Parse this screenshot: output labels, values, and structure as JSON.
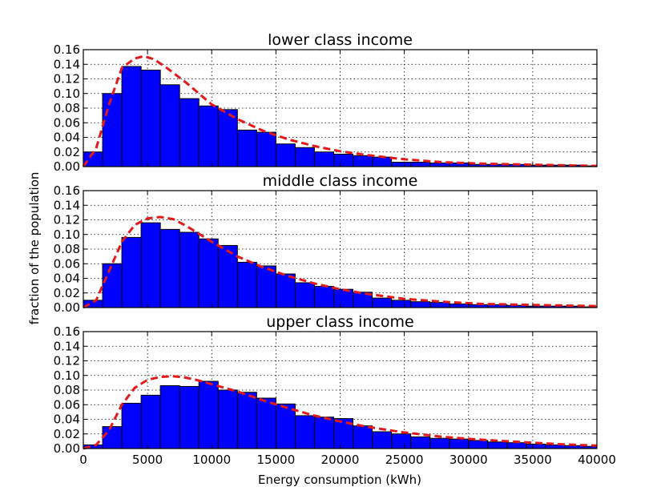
{
  "chart_data": {
    "type": "bar",
    "xlabel": "Energy consumption (kWh)",
    "ylabel": "fraction of the population",
    "xlim": [
      0,
      40000
    ],
    "ylim": [
      0,
      0.16
    ],
    "x_ticks": [
      "0",
      "5000",
      "10000",
      "15000",
      "20000",
      "25000",
      "30000",
      "35000",
      "40000"
    ],
    "y_ticks": [
      "0.00",
      "0.02",
      "0.04",
      "0.06",
      "0.08",
      "0.10",
      "0.12",
      "0.14",
      "0.16"
    ],
    "grid": true,
    "bin_width": 1500,
    "bin_starts": [
      0,
      1500,
      3000,
      4500,
      6000,
      7500,
      9000,
      10500,
      12000,
      13500,
      15000,
      16500,
      18000,
      19500,
      21000,
      22500,
      24000,
      25500,
      27000,
      28500,
      30000,
      31500,
      33000,
      34500,
      36000,
      37500,
      39000
    ],
    "bar_color": "#0000ff",
    "curve_color": "#e31a1c",
    "panels": [
      {
        "title": "lower class income",
        "values": [
          0.02,
          0.1,
          0.137,
          0.132,
          0.112,
          0.093,
          0.083,
          0.078,
          0.05,
          0.047,
          0.031,
          0.026,
          0.02,
          0.017,
          0.015,
          0.013,
          0.006,
          0.006,
          0.005,
          0.005,
          0.003,
          0.003,
          0.003,
          0.002,
          0.002,
          0.002,
          0.001
        ],
        "curve": {
          "x": [
            0,
            1000,
            2000,
            3000,
            4000,
            4700,
            5500,
            6500,
            8000,
            10000,
            12000,
            14000,
            16000,
            18000,
            20000,
            22000,
            25000,
            28000,
            31000,
            34000,
            37000,
            40000
          ],
          "y": [
            0.0,
            0.025,
            0.085,
            0.135,
            0.148,
            0.151,
            0.147,
            0.135,
            0.115,
            0.085,
            0.065,
            0.049,
            0.037,
            0.028,
            0.021,
            0.016,
            0.01,
            0.006,
            0.004,
            0.003,
            0.002,
            0.001
          ]
        }
      },
      {
        "title": "middle class income",
        "values": [
          0.01,
          0.06,
          0.096,
          0.116,
          0.107,
          0.103,
          0.094,
          0.085,
          0.062,
          0.057,
          0.046,
          0.034,
          0.029,
          0.025,
          0.021,
          0.013,
          0.01,
          0.008,
          0.007,
          0.005,
          0.004,
          0.004,
          0.003,
          0.002,
          0.002,
          0.002,
          0.001
        ],
        "curve": {
          "x": [
            0,
            1000,
            2000,
            3000,
            4000,
            5000,
            6000,
            7000,
            8000,
            10000,
            12000,
            14000,
            16000,
            18000,
            20000,
            22000,
            25000,
            28000,
            31000,
            34000,
            37000,
            40000
          ],
          "y": [
            0.0,
            0.01,
            0.05,
            0.09,
            0.113,
            0.122,
            0.124,
            0.121,
            0.112,
            0.09,
            0.07,
            0.055,
            0.043,
            0.033,
            0.025,
            0.019,
            0.012,
            0.008,
            0.005,
            0.004,
            0.003,
            0.002
          ]
        }
      },
      {
        "title": "upper class income",
        "values": [
          0.005,
          0.03,
          0.062,
          0.073,
          0.086,
          0.085,
          0.092,
          0.08,
          0.077,
          0.069,
          0.061,
          0.045,
          0.043,
          0.041,
          0.031,
          0.023,
          0.02,
          0.016,
          0.014,
          0.013,
          0.011,
          0.009,
          0.008,
          0.006,
          0.005,
          0.004,
          0.003
        ],
        "curve": {
          "x": [
            0,
            1000,
            2000,
            3000,
            4000,
            5000,
            6000,
            7000,
            8000,
            9000,
            10000,
            12000,
            14000,
            16000,
            18000,
            20000,
            22000,
            25000,
            28000,
            31000,
            34000,
            37000,
            40000
          ],
          "y": [
            0.0,
            0.005,
            0.025,
            0.06,
            0.083,
            0.094,
            0.098,
            0.099,
            0.097,
            0.093,
            0.088,
            0.078,
            0.066,
            0.055,
            0.045,
            0.037,
            0.03,
            0.022,
            0.016,
            0.012,
            0.009,
            0.006,
            0.004
          ]
        }
      }
    ]
  }
}
